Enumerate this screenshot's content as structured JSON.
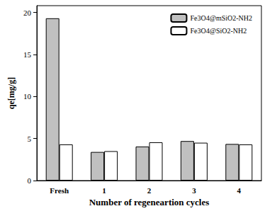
{
  "chart_data": {
    "type": "bar",
    "x_label": "Number of regeneartion cycles",
    "y_label": "qe[mg/g]",
    "categories": [
      "Fresh",
      "1",
      "2",
      "3",
      "4"
    ],
    "series": [
      {
        "name": "Fe3O4@mSiO2-NH2",
        "color": "#c0c0c0",
        "values": [
          19.3,
          3.4,
          4.05,
          4.7,
          4.35
        ]
      },
      {
        "name": "Fe3O4@SiO2-NH2",
        "color": "#ffffff",
        "values": [
          4.3,
          3.5,
          4.55,
          4.5,
          4.3
        ]
      }
    ],
    "ylim": [
      0,
      20.8
    ],
    "yticks": [
      0,
      5,
      10,
      15,
      20
    ],
    "grid": false,
    "legend": "upper right"
  }
}
